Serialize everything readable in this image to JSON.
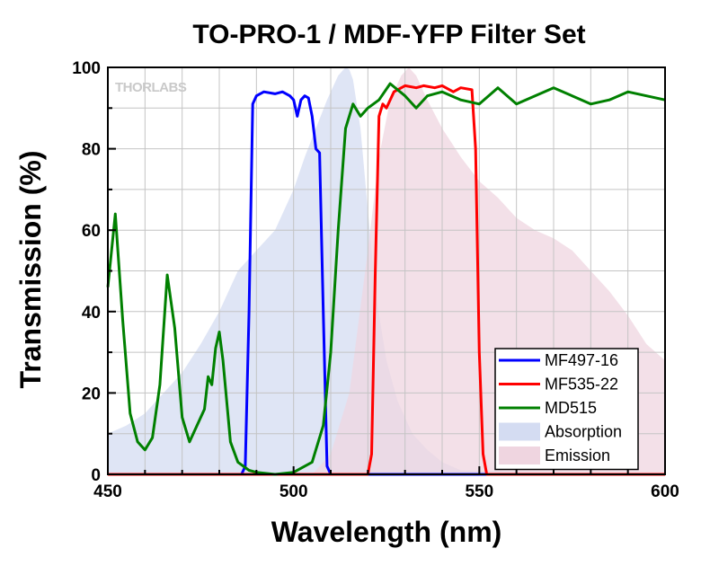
{
  "chart_data": {
    "type": "line",
    "title": "TO-PRO-1 / MDF-YFP Filter Set",
    "xlabel": "Wavelength (nm)",
    "ylabel": "Transmission (%)",
    "xlim": [
      450,
      600
    ],
    "ylim": [
      0,
      100
    ],
    "xticks": [
      450,
      500,
      550,
      600
    ],
    "yticks": [
      0,
      20,
      40,
      60,
      80,
      100
    ],
    "grid": true,
    "legend_position": "bottom-right",
    "watermark": "THORLABS",
    "series": [
      {
        "name": "MF497-16",
        "style": "line",
        "color": "#0000ff",
        "x": [
          450,
          486,
          487,
          488,
          489,
          490,
          492,
          495,
          497,
          499,
          500,
          501,
          502,
          503,
          504,
          505,
          506,
          507,
          508,
          509,
          510,
          600
        ],
        "y": [
          0,
          0,
          2,
          40,
          91,
          93,
          94,
          93.5,
          94,
          93,
          92,
          88,
          92,
          93,
          92.5,
          88,
          80,
          79,
          40,
          2,
          0,
          0
        ]
      },
      {
        "name": "MF535-22",
        "style": "line",
        "color": "#ff0000",
        "x": [
          450,
          520,
          521,
          522,
          523,
          524,
          525,
          527,
          530,
          533,
          535,
          538,
          540,
          543,
          545,
          548,
          549,
          550,
          551,
          552,
          600
        ],
        "y": [
          0,
          0,
          5,
          50,
          88,
          91,
          90,
          94,
          95.5,
          95,
          95.5,
          95,
          95.5,
          94,
          95,
          94.5,
          80,
          30,
          5,
          0,
          0
        ]
      },
      {
        "name": "MD515",
        "style": "line",
        "color": "#008000",
        "x": [
          450,
          452,
          454,
          456,
          458,
          460,
          462,
          464,
          466,
          468,
          470,
          472,
          474,
          476,
          477,
          478,
          479,
          480,
          481,
          483,
          485,
          488,
          490,
          495,
          500,
          505,
          508,
          510,
          512,
          514,
          516,
          518,
          520,
          523,
          526,
          530,
          533,
          536,
          540,
          545,
          550,
          555,
          560,
          565,
          570,
          575,
          580,
          585,
          590,
          595,
          600
        ],
        "y": [
          46,
          64,
          38,
          15,
          8,
          6,
          9,
          22,
          49,
          36,
          14,
          8,
          12,
          16,
          24,
          22,
          31,
          35,
          28,
          8,
          3,
          1,
          0.5,
          0,
          0.5,
          3,
          12,
          30,
          60,
          85,
          91,
          88,
          90,
          92,
          96,
          93,
          90,
          93,
          94,
          92,
          91,
          95,
          91,
          93,
          95,
          93,
          91,
          92,
          94,
          93,
          92
        ]
      },
      {
        "name": "Absorption",
        "style": "area",
        "color": "#d4dcf2",
        "x": [
          450,
          455,
          460,
          465,
          470,
          475,
          480,
          485,
          490,
          495,
          500,
          503,
          506,
          509,
          512,
          514,
          515,
          516,
          518,
          520,
          522,
          525,
          528,
          532,
          536,
          540,
          545,
          600
        ],
        "y": [
          10,
          12,
          15,
          20,
          25,
          32,
          40,
          50,
          55,
          60,
          70,
          78,
          85,
          92,
          98,
          100,
          99.5,
          97,
          85,
          65,
          45,
          28,
          18,
          10,
          6,
          3,
          1,
          0
        ]
      },
      {
        "name": "Emission",
        "style": "area",
        "color": "#efd5e0",
        "x": [
          450,
          505,
          510,
          515,
          520,
          523,
          526,
          529,
          531,
          533,
          536,
          540,
          545,
          550,
          555,
          560,
          565,
          570,
          575,
          580,
          585,
          590,
          595,
          600
        ],
        "y": [
          0,
          0,
          5,
          20,
          55,
          78,
          92,
          98,
          100,
          98,
          92,
          85,
          78,
          72,
          68,
          63,
          60,
          58,
          55,
          50,
          45,
          39,
          32,
          28
        ]
      }
    ]
  }
}
